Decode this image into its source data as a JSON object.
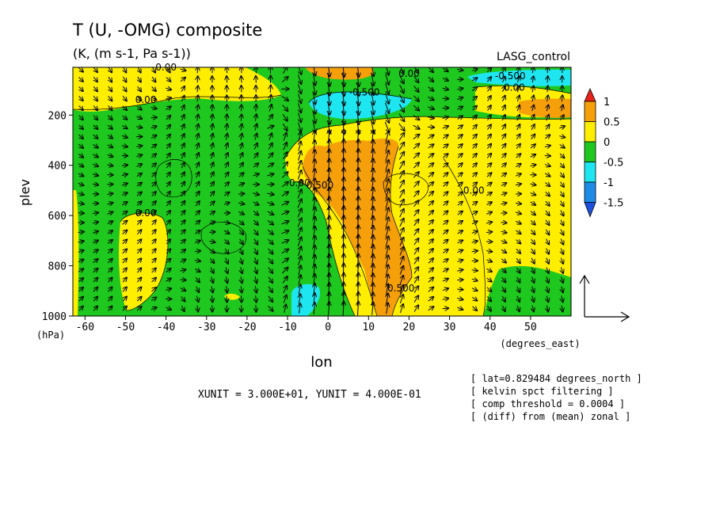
{
  "chart_data": {
    "type": "contour",
    "title": "T (U, -OMG) composite",
    "subtitle": "(K, (m s-1, Pa s-1))",
    "dataset_label": "LASG_control",
    "xlabel": "lon",
    "xunits": "(degrees_east)",
    "ylabel": "plev",
    "yunits": "(hPa)",
    "xlim": [
      -63,
      60
    ],
    "ylim": [
      1000,
      10
    ],
    "x_ticks": [
      -60,
      -50,
      -40,
      -30,
      -20,
      -10,
      0,
      10,
      20,
      30,
      40,
      50
    ],
    "x_tick_labels": [
      "-60",
      "-50",
      "-40",
      "-30",
      "-20",
      "-10",
      "0",
      "10",
      "20",
      "30",
      "40",
      "50"
    ],
    "y_ticks": [
      200,
      400,
      600,
      800,
      1000
    ],
    "y_tick_labels": [
      "200",
      "400",
      "600",
      "800",
      "1000"
    ],
    "colorbar": {
      "levels": [
        1,
        0.5,
        0,
        -0.5,
        -1,
        -1.5
      ],
      "labels": [
        "1",
        "0.5",
        "0",
        "-0.5",
        "-1",
        "-1.5"
      ],
      "colors": [
        "#e8231a",
        "#f5a00a",
        "#ffee00",
        "#1ec81e",
        "#1ee6f0",
        "#1e8ce6",
        "#1e50dc"
      ]
    },
    "contour_labels": [
      {
        "text": "0.00",
        "lon": -40,
        "plev": 10
      },
      {
        "text": "0.00",
        "lon": -45,
        "plev": 140
      },
      {
        "text": "0.00",
        "lon": -45,
        "plev": 590
      },
      {
        "text": "-0.500",
        "lon": 9,
        "plev": 110
      },
      {
        "text": "0.00",
        "lon": 20,
        "plev": 35
      },
      {
        "text": "-0.500",
        "lon": 45,
        "plev": 45
      },
      {
        "text": "0.00",
        "lon": 46,
        "plev": 90
      },
      {
        "text": "0.00",
        "lon": -7,
        "plev": 470
      },
      {
        "text": "0.500",
        "lon": -2,
        "plev": 480
      },
      {
        "text": "0.00",
        "lon": 36,
        "plev": 500
      },
      {
        "text": "0.500",
        "lon": 18,
        "plev": 890
      }
    ],
    "vector_reference": {
      "xunit": "3.000E+01",
      "yunit": "4.000E-01"
    },
    "footer_text": "XUNIT = 3.000E+01, YUNIT = 4.000E-01",
    "notes": [
      "[ lat=0.829484 degrees_north ]",
      "[ kelvin spct filtering ]",
      "[ comp threshold = 0.0004 ]",
      "[ (diff) from (mean) zonal ]"
    ]
  }
}
